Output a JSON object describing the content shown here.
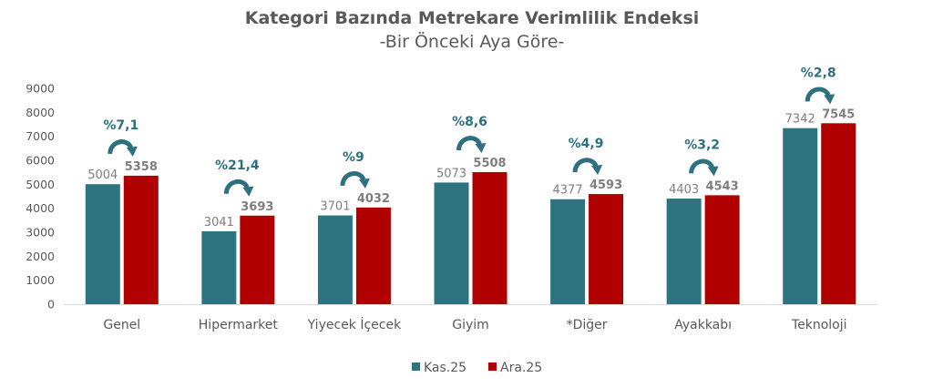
{
  "chart_data": {
    "type": "bar",
    "title": "Kategori Bazında Metrekare Verimlilik Endeksi",
    "subtitle": "-Bir Önceki Aya Göre-",
    "categories": [
      "Genel",
      "Hipermarket",
      "Yiyecek İçecek",
      "Giyim",
      "*Diğer",
      "Ayakkabı",
      "Teknoloji"
    ],
    "series": [
      {
        "name": "Kas.25",
        "color": "#2e7480",
        "values": [
          5004,
          3041,
          3701,
          5073,
          4377,
          4403,
          7342
        ]
      },
      {
        "name": "Ara.25",
        "color": "#b00000",
        "values": [
          5358,
          3693,
          4032,
          5508,
          4593,
          4543,
          7545
        ]
      }
    ],
    "changes": [
      "%7,1",
      "%21,4",
      "%9",
      "%8,6",
      "%4,9",
      "%3,2",
      "%2,8"
    ],
    "arrow_color": "#2e6f80",
    "ylim": [
      0,
      9000
    ],
    "yticks": [
      "0",
      "1000",
      "2000",
      "3000",
      "4000",
      "5000",
      "6000",
      "7000",
      "8000",
      "9000"
    ],
    "grid": false,
    "legend_position": "bottom"
  }
}
